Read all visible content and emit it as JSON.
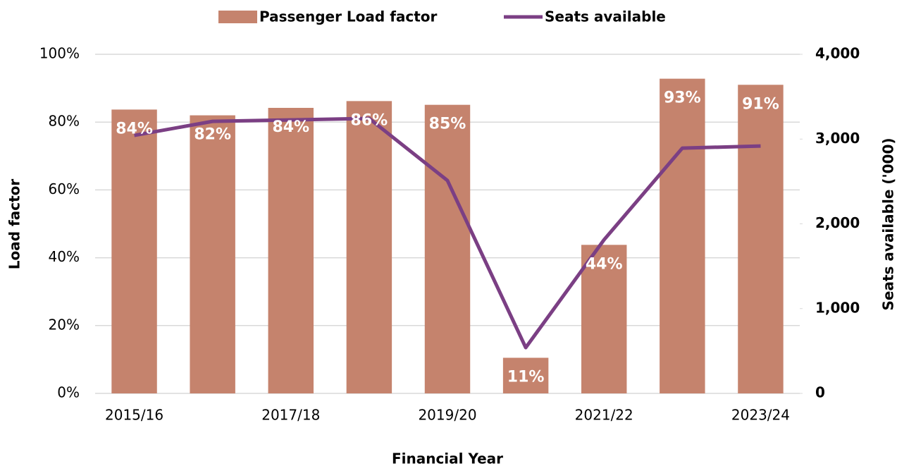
{
  "chart_data": {
    "type": "bar",
    "x_label": "Financial Year",
    "y_label": "Load factor",
    "y2_label": "Seats available ('000)",
    "categories": [
      "2015/16",
      null,
      "2017/18",
      null,
      "2019/20",
      null,
      "2021/22",
      null,
      "2023/24"
    ],
    "series": [
      {
        "name": "Passenger Load factor",
        "type": "bar",
        "color": "#c5836d",
        "values": [
          83.7,
          82.0,
          84.2,
          86.2,
          85.1,
          10.5,
          43.8,
          92.8,
          91.0
        ],
        "value_labels": [
          "84%",
          "82%",
          "84%",
          "86%",
          "85%",
          "11%",
          "44%",
          "93%",
          "91%"
        ]
      },
      {
        "name": "Seats available",
        "type": "line",
        "axis": "y2",
        "color": "#7b3f84",
        "values": [
          3043,
          3209,
          3226,
          3243,
          2511,
          540,
          1812,
          2893,
          2918
        ]
      }
    ],
    "ylim": [
      0,
      100
    ],
    "yticks": [
      {
        "value": 0,
        "label": "0%"
      },
      {
        "value": 20,
        "label": "20%"
      },
      {
        "value": 40,
        "label": "40%"
      },
      {
        "value": 60,
        "label": "60%"
      },
      {
        "value": 80,
        "label": "80%"
      },
      {
        "value": 100,
        "label": "100%"
      }
    ],
    "y2lim": [
      0,
      4000
    ],
    "y2ticks": [
      0,
      {
        "value": 1000,
        "label": "1,000"
      },
      {
        "value": 2000,
        "label": "2,000"
      },
      {
        "value": 3000,
        "label": "3,000"
      },
      {
        "value": 4000,
        "label": "4,000"
      }
    ],
    "grid": true,
    "legend": "top"
  }
}
